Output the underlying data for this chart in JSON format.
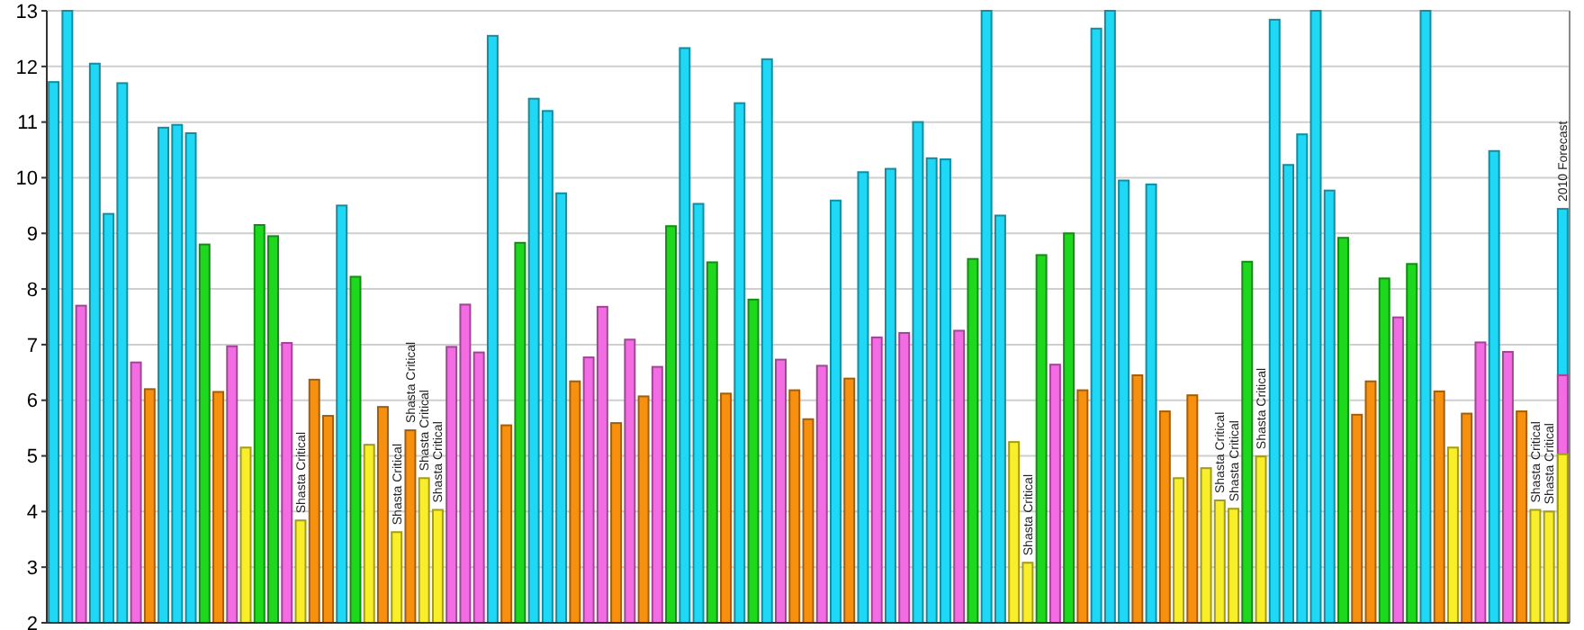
{
  "chart_data": {
    "type": "bar",
    "grid": "y",
    "tick_labels": "y",
    "categories": [
      null,
      null,
      null,
      null,
      null,
      null,
      null,
      null,
      null,
      null,
      null,
      null,
      null,
      null,
      null,
      null,
      null,
      null,
      null,
      null,
      null,
      null,
      null,
      null,
      null,
      null,
      null,
      null,
      null,
      null,
      null,
      null,
      null,
      null,
      null,
      null,
      null,
      null,
      null,
      null,
      null,
      null,
      null,
      null,
      null,
      null,
      null,
      null,
      null,
      null,
      null,
      null,
      null,
      null,
      null,
      null,
      null,
      null,
      null,
      null,
      null,
      null,
      null,
      null,
      null,
      null,
      null,
      null,
      null,
      null,
      null,
      null,
      null,
      null,
      null,
      null,
      null,
      null,
      null,
      null,
      null,
      null,
      null,
      null,
      null,
      null,
      null,
      null,
      null,
      null,
      null,
      null,
      null,
      null,
      null,
      null,
      null,
      null,
      null,
      null,
      null,
      null,
      null,
      null,
      null,
      null,
      null,
      null,
      null,
      null,
      null
    ],
    "ylim": [
      2,
      13
    ],
    "yticks": [
      2,
      3,
      4,
      5,
      6,
      7,
      8,
      9,
      10,
      11,
      12,
      13
    ],
    "series": [
      {
        "values": [
          11.72,
          13,
          7.7,
          12.05,
          9.35,
          11.7,
          6.68,
          6.2,
          10.9,
          10.95,
          10.8,
          8.8,
          6.15,
          6.97,
          5.15,
          9.15,
          8.95,
          7.03,
          3.84,
          6.37,
          5.72,
          9.5,
          8.22,
          5.2,
          5.88,
          3.63,
          5.46,
          4.6,
          4.03,
          6.96,
          7.72,
          6.86,
          12.55,
          5.55,
          8.83,
          11.42,
          11.2,
          9.72,
          6.34,
          6.77,
          7.68,
          5.59,
          7.09,
          6.07,
          6.6,
          9.13,
          12.33,
          9.53,
          8.48,
          6.12,
          11.34,
          7.81,
          12.13,
          6.73,
          6.18,
          5.66,
          6.62,
          9.59,
          6.39,
          10.1,
          7.13,
          10.16,
          7.21,
          11.0,
          10.35,
          10.33,
          7.25,
          8.54,
          13,
          9.32,
          5.25,
          3.08,
          8.61,
          6.64,
          9.0,
          6.18,
          12.68,
          13,
          9.95,
          6.45,
          9.88,
          5.8,
          4.6,
          6.09,
          4.78,
          4.2,
          4.05,
          8.49,
          4.99,
          12.84,
          10.23,
          10.78,
          13,
          9.77,
          8.92,
          5.74,
          6.34,
          8.19,
          7.49,
          8.45,
          13,
          6.16,
          5.15,
          5.76,
          7.04,
          10.48,
          6.87,
          5.8,
          4.03,
          4.0,
          null
        ],
        "colors": [
          "#1ed8f5",
          "#1ed8f5",
          "#f46ce4",
          "#1ed8f5",
          "#1ed8f5",
          "#1ed8f5",
          "#f46ce4",
          "#f8900f",
          "#1ed8f5",
          "#1ed8f5",
          "#1ed8f5",
          "#1ed81e",
          "#f8900f",
          "#f46ce4",
          "#f8ee2a",
          "#1ed81e",
          "#1ed81e",
          "#f46ce4",
          "#f8ee2a",
          "#f8900f",
          "#f8900f",
          "#1ed8f5",
          "#1ed81e",
          "#f8ee2a",
          "#f8900f",
          "#f8ee2a",
          "#f8900f",
          "#f8ee2a",
          "#f8ee2a",
          "#f46ce4",
          "#f46ce4",
          "#f46ce4",
          "#1ed8f5",
          "#f8900f",
          "#1ed81e",
          "#1ed8f5",
          "#1ed8f5",
          "#1ed8f5",
          "#f8900f",
          "#f46ce4",
          "#f46ce4",
          "#f8900f",
          "#f46ce4",
          "#f8900f",
          "#f46ce4",
          "#1ed81e",
          "#1ed8f5",
          "#1ed8f5",
          "#1ed81e",
          "#f8900f",
          "#1ed8f5",
          "#1ed81e",
          "#1ed8f5",
          "#f46ce4",
          "#f8900f",
          "#f8900f",
          "#f46ce4",
          "#1ed8f5",
          "#f8900f",
          "#1ed8f5",
          "#f46ce4",
          "#1ed8f5",
          "#f46ce4",
          "#1ed8f5",
          "#1ed8f5",
          "#1ed8f5",
          "#f46ce4",
          "#1ed81e",
          "#1ed8f5",
          "#1ed8f5",
          "#f8ee2a",
          "#f8ee2a",
          "#1ed81e",
          "#f46ce4",
          "#1ed81e",
          "#f8900f",
          "#1ed8f5",
          "#1ed8f5",
          "#1ed8f5",
          "#f8900f",
          "#1ed8f5",
          "#f8900f",
          "#f8ee2a",
          "#f8900f",
          "#f8ee2a",
          "#f8ee2a",
          "#f8ee2a",
          "#1ed81e",
          "#f8ee2a",
          "#1ed8f5",
          "#1ed8f5",
          "#1ed8f5",
          "#1ed8f5",
          "#1ed8f5",
          "#1ed81e",
          "#f8900f",
          "#f8900f",
          "#1ed81e",
          "#f46ce4",
          "#1ed81e",
          "#1ed8f5",
          "#f8900f",
          "#f8ee2a",
          "#f8900f",
          "#f46ce4",
          "#1ed8f5",
          "#f46ce4",
          "#f8900f",
          "#f8ee2a",
          "#f8ee2a",
          null
        ]
      },
      {
        "color": "#1ed8f5",
        "values": [
          null,
          null,
          null,
          null,
          null,
          null,
          null,
          null,
          null,
          null,
          null,
          null,
          null,
          null,
          null,
          null,
          null,
          null,
          null,
          null,
          null,
          null,
          null,
          null,
          null,
          null,
          null,
          null,
          null,
          null,
          null,
          null,
          null,
          null,
          null,
          null,
          null,
          null,
          null,
          null,
          null,
          null,
          null,
          null,
          null,
          null,
          null,
          null,
          null,
          null,
          null,
          null,
          null,
          null,
          null,
          null,
          null,
          null,
          null,
          null,
          null,
          null,
          null,
          null,
          null,
          null,
          null,
          null,
          null,
          null,
          null,
          null,
          null,
          null,
          null,
          null,
          null,
          null,
          null,
          null,
          null,
          null,
          null,
          null,
          null,
          null,
          null,
          null,
          null,
          null,
          null,
          null,
          null,
          null,
          null,
          null,
          null,
          null,
          null,
          null,
          null,
          null,
          null,
          null,
          null,
          null,
          null,
          null,
          null,
          null,
          9.44
        ]
      },
      {
        "color": "#f46ce4",
        "values": [
          null,
          null,
          null,
          null,
          null,
          null,
          null,
          null,
          null,
          null,
          null,
          null,
          null,
          null,
          null,
          null,
          null,
          null,
          null,
          null,
          null,
          null,
          null,
          null,
          null,
          null,
          null,
          null,
          null,
          null,
          null,
          null,
          null,
          null,
          null,
          null,
          null,
          null,
          null,
          null,
          null,
          null,
          null,
          null,
          null,
          null,
          null,
          null,
          null,
          null,
          null,
          null,
          null,
          null,
          null,
          null,
          null,
          null,
          null,
          null,
          null,
          null,
          null,
          null,
          null,
          null,
          null,
          null,
          null,
          null,
          null,
          null,
          null,
          null,
          null,
          null,
          null,
          null,
          null,
          null,
          null,
          null,
          null,
          null,
          null,
          null,
          null,
          null,
          null,
          null,
          null,
          null,
          null,
          null,
          null,
          null,
          null,
          null,
          null,
          null,
          null,
          null,
          null,
          null,
          null,
          null,
          null,
          null,
          null,
          null,
          6.45
        ]
      },
      {
        "color": "#f8ee2a",
        "values": [
          null,
          null,
          null,
          null,
          null,
          null,
          null,
          null,
          null,
          null,
          null,
          null,
          null,
          null,
          null,
          null,
          null,
          null,
          null,
          null,
          null,
          null,
          null,
          null,
          null,
          null,
          null,
          null,
          null,
          null,
          null,
          null,
          null,
          null,
          null,
          null,
          null,
          null,
          null,
          null,
          null,
          null,
          null,
          null,
          null,
          null,
          null,
          null,
          null,
          null,
          null,
          null,
          null,
          null,
          null,
          null,
          null,
          null,
          null,
          null,
          null,
          null,
          null,
          null,
          null,
          null,
          null,
          null,
          null,
          null,
          null,
          null,
          null,
          null,
          null,
          null,
          null,
          null,
          null,
          null,
          null,
          null,
          null,
          null,
          null,
          null,
          null,
          null,
          null,
          null,
          null,
          null,
          null,
          null,
          null,
          null,
          null,
          null,
          null,
          null,
          null,
          null,
          null,
          null,
          null,
          null,
          null,
          null,
          null,
          null,
          5.03
        ]
      }
    ],
    "annotations": [
      {
        "text": "Shasta Critical",
        "y": 3.84
      },
      {
        "text": "Shasta Critical",
        "y": 3.63
      },
      {
        "text": "Shasta Critical",
        "y": 5.46
      },
      {
        "text": "Shasta Critical",
        "y": 4.6
      },
      {
        "text": "Shasta Critical",
        "y": 4.03
      },
      {
        "text": "Shasta Critical",
        "y": 3.08
      },
      {
        "text": "Shasta Critical",
        "y": 4.2
      },
      {
        "text": "Shasta Critical",
        "y": 4.05
      },
      {
        "text": "Shasta Critical",
        "y": 4.99
      },
      {
        "text": "Shasta Critical",
        "y": 4.03
      },
      {
        "text": "Shasta Critical",
        "y": 4.0
      },
      {
        "text": "2010 Forecast",
        "y": 9.44
      }
    ]
  }
}
